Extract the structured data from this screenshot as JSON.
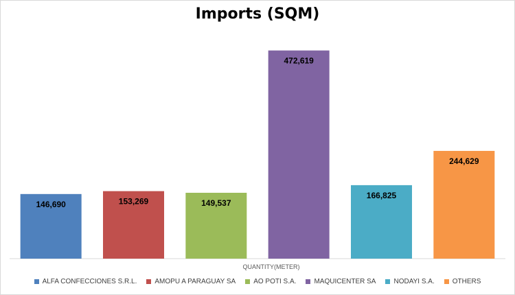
{
  "chart_data": {
    "type": "bar",
    "title": "Imports (SQM)",
    "xlabel": "QUANTITY(METER)",
    "ylabel": "",
    "ylim": [
      0,
      500000
    ],
    "grid": false,
    "legend_position": "bottom",
    "series": [
      {
        "name": "ALFA CONFECCIONES S.R.L.",
        "value": 146690,
        "label": "146,690",
        "color": "#4f81bd"
      },
      {
        "name": "AMOPU A PARAGUAY SA",
        "value": 153269,
        "label": "153,269",
        "color": "#c0504d"
      },
      {
        "name": "AO POTI  S.A.",
        "value": 149537,
        "label": "149,537",
        "color": "#9bbb59"
      },
      {
        "name": "MAQUICENTER SA",
        "value": 472619,
        "label": "472,619",
        "color": "#8064a2"
      },
      {
        "name": "NODAYI S.A.",
        "value": 166825,
        "label": "166,825",
        "color": "#4bacc6"
      },
      {
        "name": "OTHERS",
        "value": 244629,
        "label": "244,629",
        "color": "#f79646"
      }
    ]
  }
}
